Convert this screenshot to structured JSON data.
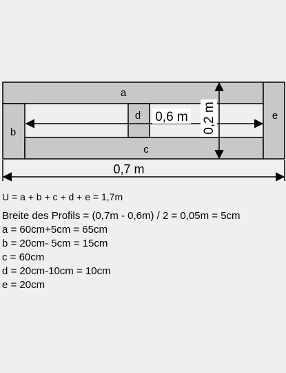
{
  "diagram": {
    "labels": {
      "a": "a",
      "b": "b",
      "c": "c",
      "d": "d",
      "e": "e"
    },
    "dimensions": {
      "inner_width": "0,6 m",
      "height": "0,2 m",
      "outer_width": "0,7 m"
    },
    "colors": {
      "bar_fill": "#c8c8c8",
      "outline": "#000000",
      "background": "#efefef"
    }
  },
  "text": {
    "formula": "U = a + b + c + d + e  = 1,7m",
    "lines": [
      "Breite des Profils = (0,7m - 0,6m) / 2 = 0,05m = 5cm",
      "a = 60cm+5cm = 65cm",
      "b = 20cm- 5cm = 15cm",
      "c = 60cm",
      "d = 20cm-10cm = 10cm",
      "e = 20cm"
    ]
  }
}
